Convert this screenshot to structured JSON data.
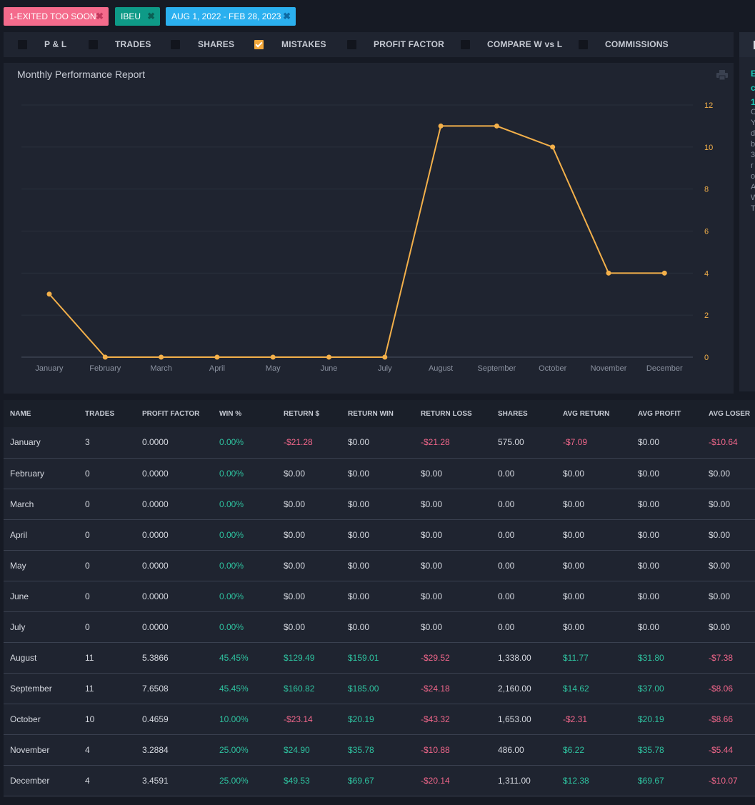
{
  "filters": [
    {
      "label": "1-EXITED TOO SOON",
      "remove": "✖",
      "color": "#f46b8c"
    },
    {
      "label": "IBEU",
      "remove": "✖",
      "color": "#0e9a87"
    },
    {
      "label": "AUG 1, 2022 - FEB 28, 2023",
      "remove": "✖",
      "color": "#2bb0ef"
    }
  ],
  "tabs": [
    {
      "label": "P & L",
      "checked": false
    },
    {
      "label": "TRADES",
      "checked": false
    },
    {
      "label": "SHARES",
      "checked": false
    },
    {
      "label": "MISTAKES",
      "checked": true
    },
    {
      "label": "PROFIT FACTOR",
      "checked": false
    },
    {
      "label": "COMPARE W vs L",
      "checked": false
    },
    {
      "label": "COMMISSIONS",
      "checked": false
    }
  ],
  "side_panel": {
    "title": "E c 1",
    "text": "C Y d b 3 r o A W T"
  },
  "chart": {
    "title": "Monthly Performance Report",
    "print_icon": "print-icon"
  },
  "chart_data": {
    "type": "line",
    "categories": [
      "January",
      "February",
      "March",
      "April",
      "May",
      "June",
      "July",
      "August",
      "September",
      "October",
      "November",
      "December"
    ],
    "series": [
      {
        "values": [
          3,
          0,
          0,
          0,
          0,
          0,
          0,
          11,
          11,
          10,
          4,
          4
        ],
        "color": "#f3b04a"
      }
    ],
    "y_ticks": [
      0,
      2,
      4,
      6,
      8,
      10,
      12
    ],
    "ylim": [
      0,
      12
    ],
    "y_axis_side": "right",
    "grid": true
  },
  "table": {
    "headers": [
      "NAME",
      "TRADES",
      "PROFIT FACTOR",
      "WIN %",
      "RETURN $",
      "RETURN WIN",
      "RETURN LOSS",
      "SHARES",
      "AVG RETURN",
      "AVG PROFIT",
      "AVG LOSER"
    ],
    "rows": [
      [
        "January",
        "3",
        "0.0000",
        "0.00%",
        "-$21.28",
        "$0.00",
        "-$21.28",
        "575.00",
        "-$7.09",
        "$0.00",
        "-$10.64"
      ],
      [
        "February",
        "0",
        "0.0000",
        "0.00%",
        "$0.00",
        "$0.00",
        "$0.00",
        "0.00",
        "$0.00",
        "$0.00",
        "$0.00"
      ],
      [
        "March",
        "0",
        "0.0000",
        "0.00%",
        "$0.00",
        "$0.00",
        "$0.00",
        "0.00",
        "$0.00",
        "$0.00",
        "$0.00"
      ],
      [
        "April",
        "0",
        "0.0000",
        "0.00%",
        "$0.00",
        "$0.00",
        "$0.00",
        "0.00",
        "$0.00",
        "$0.00",
        "$0.00"
      ],
      [
        "May",
        "0",
        "0.0000",
        "0.00%",
        "$0.00",
        "$0.00",
        "$0.00",
        "0.00",
        "$0.00",
        "$0.00",
        "$0.00"
      ],
      [
        "June",
        "0",
        "0.0000",
        "0.00%",
        "$0.00",
        "$0.00",
        "$0.00",
        "0.00",
        "$0.00",
        "$0.00",
        "$0.00"
      ],
      [
        "July",
        "0",
        "0.0000",
        "0.00%",
        "$0.00",
        "$0.00",
        "$0.00",
        "0.00",
        "$0.00",
        "$0.00",
        "$0.00"
      ],
      [
        "August",
        "11",
        "5.3866",
        "45.45%",
        "$129.49",
        "$159.01",
        "-$29.52",
        "1,338.00",
        "$11.77",
        "$31.80",
        "-$7.38"
      ],
      [
        "September",
        "11",
        "7.6508",
        "45.45%",
        "$160.82",
        "$185.00",
        "-$24.18",
        "2,160.00",
        "$14.62",
        "$37.00",
        "-$8.06"
      ],
      [
        "October",
        "10",
        "0.4659",
        "10.00%",
        "-$23.14",
        "$20.19",
        "-$43.32",
        "1,653.00",
        "-$2.31",
        "$20.19",
        "-$8.66"
      ],
      [
        "November",
        "4",
        "3.2884",
        "25.00%",
        "$24.90",
        "$35.78",
        "-$10.88",
        "486.00",
        "$6.22",
        "$35.78",
        "-$5.44"
      ],
      [
        "December",
        "4",
        "3.4591",
        "25.00%",
        "$49.53",
        "$69.67",
        "-$20.14",
        "1,311.00",
        "$12.38",
        "$69.67",
        "-$10.07"
      ]
    ]
  },
  "colors": {
    "positive": "#2ec3a0",
    "negative": "#f0668a",
    "accent": "#f3b04a"
  }
}
